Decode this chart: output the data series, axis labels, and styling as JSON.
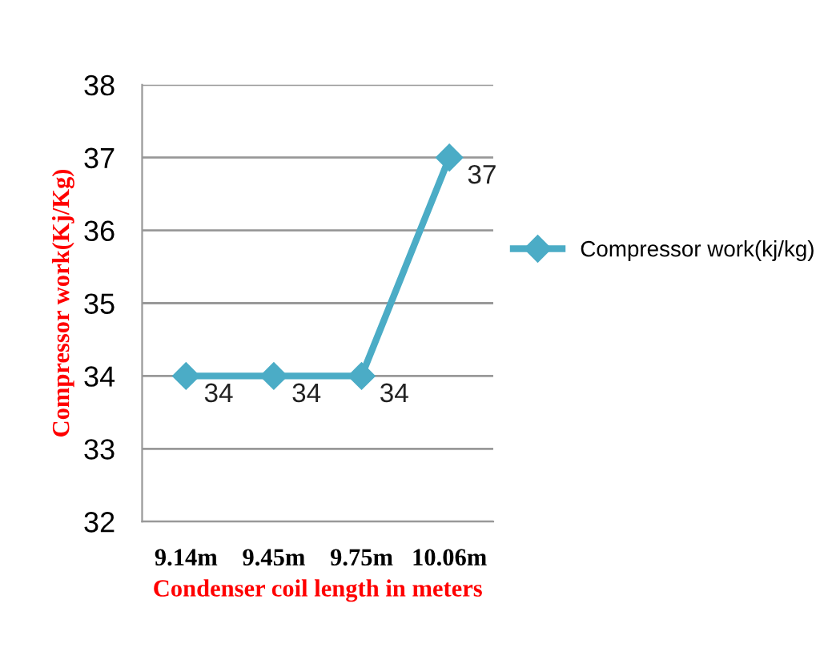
{
  "chart_data": {
    "type": "line",
    "xlabel": "Condenser coil length in meters",
    "ylabel": "Compressor work(Kj/Kg)",
    "categories": [
      "9.14m",
      "9.45m",
      "9.75m",
      "10.06m"
    ],
    "series": [
      {
        "name": "Compressor work(kj/kg)",
        "color": "#4bacc6",
        "values": [
          34,
          34,
          34,
          37
        ]
      }
    ],
    "ylim": [
      32,
      38
    ],
    "yticks": [
      32,
      33,
      34,
      35,
      36,
      37,
      38
    ],
    "grid": "y",
    "legend": "right",
    "marker": "diamond",
    "line_style": "solid",
    "data_labels": true
  }
}
